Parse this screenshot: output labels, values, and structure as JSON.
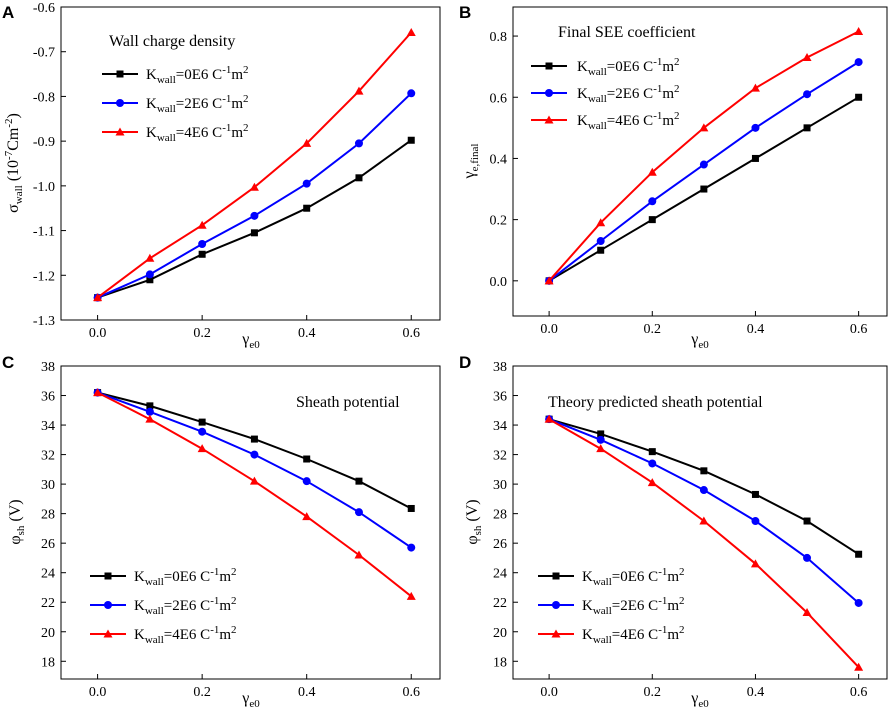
{
  "figure": {
    "panels": [
      "A",
      "B",
      "C",
      "D"
    ]
  },
  "legend": {
    "k_symbol": "K",
    "k_sub": "wall",
    "items": [
      {
        "value": "=0E6 C",
        "exp1": "-1",
        "unit": "m",
        "exp2": "2",
        "color": "#000000",
        "marker": "square"
      },
      {
        "value": "=2E6 C",
        "exp1": "-1",
        "unit": "m",
        "exp2": "2",
        "color": "#0000ff",
        "marker": "circle"
      },
      {
        "value": "=4E6 C",
        "exp1": "-1",
        "unit": "m",
        "exp2": "2",
        "color": "#ff0000",
        "marker": "triangle"
      }
    ]
  },
  "chart_data": [
    {
      "type": "line",
      "panel": "A",
      "title": "Wall charge density",
      "xlabel": {
        "main": "γ",
        "sub": "e0"
      },
      "ylabel": {
        "main": "σ",
        "sub": "wall",
        "rest_open": " (10",
        "exp1": "-7",
        "rest_mid": "Cm",
        "exp2": "-2",
        "rest_close": ")"
      },
      "x": [
        0.0,
        0.1,
        0.2,
        0.3,
        0.4,
        0.5,
        0.6
      ],
      "xticks": [
        "0.0",
        "0.2",
        "0.4",
        "0.6"
      ],
      "xtick_values": [
        0.0,
        0.2,
        0.4,
        0.6
      ],
      "yticks": [
        "-1.3",
        "-1.2",
        "-1.1",
        "-1.0",
        "-0.9",
        "-0.8",
        "-0.7",
        "-0.6"
      ],
      "ytick_values": [
        -1.3,
        -1.2,
        -1.1,
        -1.0,
        -0.9,
        -0.8,
        -0.7,
        -0.6
      ],
      "xlim": [
        -0.07,
        0.655
      ],
      "ylim": [
        -1.3,
        -0.6
      ],
      "series": [
        {
          "name": "Kwall=0E6",
          "values": [
            -1.25,
            -1.21,
            -1.153,
            -1.105,
            -1.05,
            -0.982,
            -0.898
          ]
        },
        {
          "name": "Kwall=2E6",
          "values": [
            -1.25,
            -1.198,
            -1.13,
            -1.067,
            -0.995,
            -0.905,
            -0.793
          ]
        },
        {
          "name": "Kwall=4E6",
          "values": [
            -1.25,
            -1.162,
            -1.088,
            -1.003,
            -0.905,
            -0.788,
            -0.657
          ]
        }
      ]
    },
    {
      "type": "line",
      "panel": "B",
      "title": "Final SEE coefficient",
      "xlabel": {
        "main": "γ",
        "sub": "e0"
      },
      "ylabel": {
        "main": "γ",
        "sub": "e,final"
      },
      "x": [
        0.0,
        0.1,
        0.2,
        0.3,
        0.4,
        0.5,
        0.6
      ],
      "xticks": [
        "0.0",
        "0.2",
        "0.4",
        "0.6"
      ],
      "xtick_values": [
        0.0,
        0.2,
        0.4,
        0.6
      ],
      "yticks": [
        "0.0",
        "0.2",
        "0.4",
        "0.6",
        "0.8"
      ],
      "ytick_values": [
        0.0,
        0.2,
        0.4,
        0.6,
        0.8
      ],
      "xlim": [
        -0.07,
        0.655
      ],
      "ylim": [
        -0.115,
        0.895
      ],
      "series": [
        {
          "name": "Kwall=0E6",
          "values": [
            0.0,
            0.1,
            0.2,
            0.3,
            0.4,
            0.5,
            0.6
          ]
        },
        {
          "name": "Kwall=2E6",
          "values": [
            0.0,
            0.13,
            0.26,
            0.38,
            0.5,
            0.61,
            0.715
          ]
        },
        {
          "name": "Kwall=4E6",
          "values": [
            0.0,
            0.19,
            0.355,
            0.5,
            0.63,
            0.73,
            0.815
          ]
        }
      ]
    },
    {
      "type": "line",
      "panel": "C",
      "title": "Sheath potential",
      "xlabel": {
        "main": "γ",
        "sub": "e0"
      },
      "ylabel": {
        "main": "φ",
        "sub": "sh",
        "rest": " (V)"
      },
      "x": [
        0.0,
        0.1,
        0.2,
        0.3,
        0.4,
        0.5,
        0.6
      ],
      "xticks": [
        "0.0",
        "0.2",
        "0.4",
        "0.6"
      ],
      "xtick_values": [
        0.0,
        0.2,
        0.4,
        0.6
      ],
      "yticks": [
        "18",
        "20",
        "22",
        "24",
        "26",
        "28",
        "30",
        "32",
        "34",
        "36",
        "38"
      ],
      "ytick_values": [
        18,
        20,
        22,
        24,
        26,
        28,
        30,
        32,
        34,
        36,
        38
      ],
      "xlim": [
        -0.07,
        0.655
      ],
      "ylim": [
        16.8,
        38.0
      ],
      "series": [
        {
          "name": "Kwall=0E6",
          "values": [
            36.2,
            35.3,
            34.2,
            33.05,
            31.7,
            30.2,
            28.35
          ]
        },
        {
          "name": "Kwall=2E6",
          "values": [
            36.2,
            34.9,
            33.55,
            32.0,
            30.2,
            28.1,
            25.7
          ]
        },
        {
          "name": "Kwall=4E6",
          "values": [
            36.2,
            34.4,
            32.4,
            30.2,
            27.8,
            25.2,
            22.4
          ]
        }
      ]
    },
    {
      "type": "line",
      "panel": "D",
      "title": "Theory predicted sheath potential",
      "xlabel": {
        "main": "γ",
        "sub": "e0"
      },
      "ylabel": {
        "main": "φ",
        "sub": "sh",
        "rest": " (V)"
      },
      "x": [
        0.0,
        0.1,
        0.2,
        0.3,
        0.4,
        0.5,
        0.6
      ],
      "xticks": [
        "0.0",
        "0.2",
        "0.4",
        "0.6"
      ],
      "xtick_values": [
        0.0,
        0.2,
        0.4,
        0.6
      ],
      "yticks": [
        "18",
        "20",
        "22",
        "24",
        "26",
        "28",
        "30",
        "32",
        "34",
        "36",
        "38"
      ],
      "ytick_values": [
        18,
        20,
        22,
        24,
        26,
        28,
        30,
        32,
        34,
        36,
        38
      ],
      "xlim": [
        -0.07,
        0.655
      ],
      "ylim": [
        16.8,
        38.0
      ],
      "series": [
        {
          "name": "Kwall=0E6",
          "values": [
            34.4,
            33.4,
            32.2,
            30.9,
            29.3,
            27.5,
            25.25
          ]
        },
        {
          "name": "Kwall=2E6",
          "values": [
            34.4,
            33.0,
            31.4,
            29.6,
            27.5,
            25.0,
            21.95
          ]
        },
        {
          "name": "Kwall=4E6",
          "values": [
            34.4,
            32.4,
            30.1,
            27.5,
            24.6,
            21.3,
            17.6
          ]
        }
      ]
    }
  ]
}
